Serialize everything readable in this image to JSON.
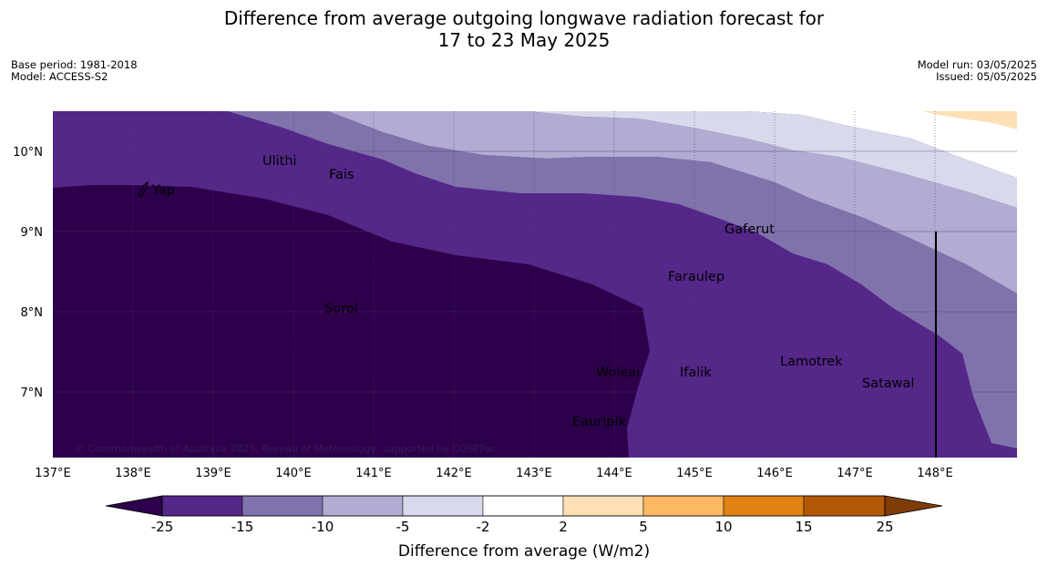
{
  "title_line1": "Difference from average outgoing longwave radiation forecast for",
  "title_line2": "17 to 23 May 2025",
  "meta_left": {
    "base_period": "Base period: 1981-2018",
    "model": "Model: ACCESS-S2"
  },
  "meta_right": {
    "model_run": "Model run: 03/05/2025",
    "issued": "Issued: 05/05/2025"
  },
  "map": {
    "lon_ticks": [
      "137°E",
      "138°E",
      "139°E",
      "140°E",
      "141°E",
      "142°E",
      "143°E",
      "144°E",
      "145°E",
      "146°E",
      "147°E",
      "148°E"
    ],
    "lat_ticks": [
      "10°N",
      "9°N",
      "8°N",
      "7°N"
    ],
    "places": [
      "Yap",
      "Ulithi",
      "Fais",
      "Sorol",
      "Gaferut",
      "Faraulep",
      "Woleai",
      "Ifalik",
      "Eauripik",
      "Lamotrek",
      "Satawal"
    ],
    "copyright": "© Commonwealth of Australia 2025, Bureau of Meteorology, supported by COSPPac"
  },
  "colorbar": {
    "label": "Difference from average (W/m2)",
    "ticks": [
      "-25",
      "-15",
      "-10",
      "-5",
      "-2",
      "2",
      "5",
      "10",
      "15",
      "25"
    ],
    "colors": [
      "#2d004b",
      "#542788",
      "#8073ac",
      "#b2abd2",
      "#d8daeb",
      "#ffffff",
      "#fee0b6",
      "#fdb863",
      "#e08214",
      "#b35806",
      "#7f3b08"
    ]
  }
}
